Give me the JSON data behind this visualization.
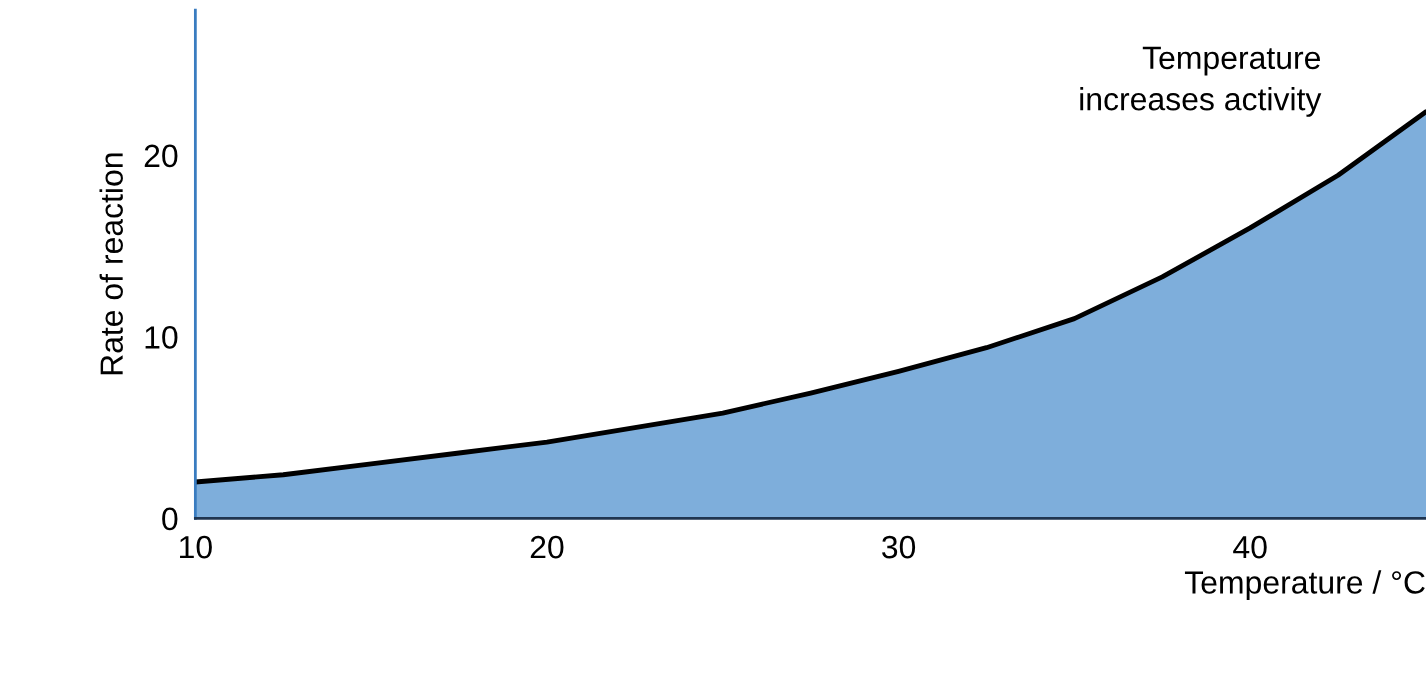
{
  "chart_data": {
    "type": "area",
    "xlabel": "Temperature / °C",
    "ylabel": "Rate of reaction",
    "x": [
      10,
      12.5,
      15,
      17.5,
      20,
      22.5,
      25,
      27.5,
      30,
      32.5,
      35,
      37.5,
      40,
      42.5,
      45
    ],
    "series": [
      {
        "color": "#7eaedb",
        "values": [
          2.0,
          2.4,
          3.0,
          3.6,
          4.2,
          5.0,
          5.8,
          6.9,
          8.1,
          9.4,
          11.0,
          13.3,
          16.0,
          18.9,
          22.4
        ]
      }
    ],
    "xlim": [
      10,
      45
    ],
    "ylim": [
      0,
      28
    ],
    "xticks": [
      10,
      20,
      30,
      40
    ],
    "yticks": [
      0,
      10,
      20
    ],
    "grid": false,
    "legend": false,
    "annotations": [
      "Temperature\nincreases activity"
    ]
  }
}
